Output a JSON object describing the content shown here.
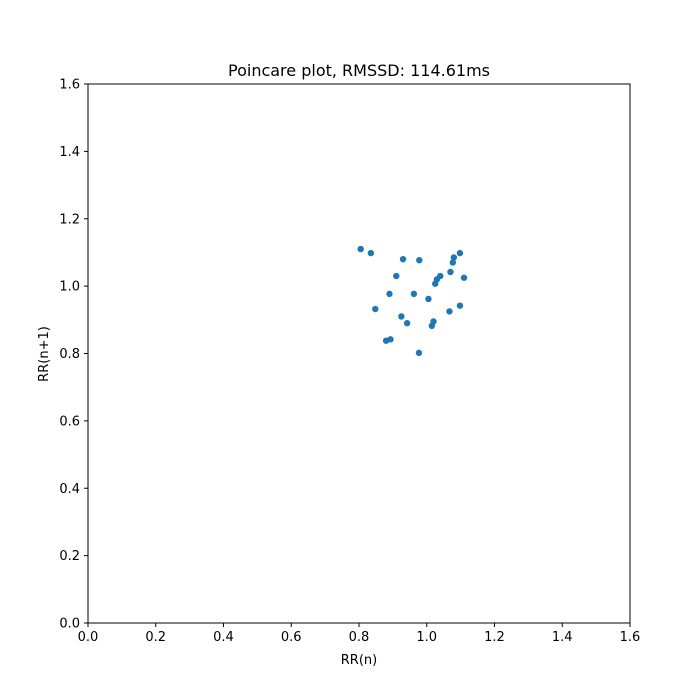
{
  "chart_data": {
    "type": "scatter",
    "title": "Poincare plot, RMSSD: 114.61ms",
    "xlabel": "RR(n)",
    "ylabel": "RR(n+1)",
    "xlim": [
      0.0,
      1.6
    ],
    "ylim": [
      0.0,
      1.6
    ],
    "xticks": [
      "0.0",
      "0.2",
      "0.4",
      "0.6",
      "0.8",
      "1.0",
      "1.2",
      "1.4",
      "1.6"
    ],
    "yticks": [
      "0.0",
      "0.2",
      "0.4",
      "0.6",
      "0.8",
      "1.0",
      "1.2",
      "1.4",
      "1.6"
    ],
    "grid": false,
    "marker_color": "#1f77b4",
    "points": [
      {
        "x": 0.805,
        "y": 1.11
      },
      {
        "x": 0.835,
        "y": 1.098
      },
      {
        "x": 0.93,
        "y": 1.08
      },
      {
        "x": 0.978,
        "y": 1.077
      },
      {
        "x": 1.098,
        "y": 1.098
      },
      {
        "x": 1.08,
        "y": 1.085
      },
      {
        "x": 1.077,
        "y": 1.07
      },
      {
        "x": 0.91,
        "y": 1.03
      },
      {
        "x": 1.07,
        "y": 1.042
      },
      {
        "x": 1.04,
        "y": 1.03
      },
      {
        "x": 1.11,
        "y": 1.025
      },
      {
        "x": 1.03,
        "y": 1.02
      },
      {
        "x": 1.025,
        "y": 1.007
      },
      {
        "x": 0.89,
        "y": 0.977
      },
      {
        "x": 0.962,
        "y": 0.977
      },
      {
        "x": 1.005,
        "y": 0.962
      },
      {
        "x": 1.098,
        "y": 0.942
      },
      {
        "x": 0.848,
        "y": 0.932
      },
      {
        "x": 1.067,
        "y": 0.925
      },
      {
        "x": 0.925,
        "y": 0.91
      },
      {
        "x": 0.942,
        "y": 0.89
      },
      {
        "x": 1.02,
        "y": 0.895
      },
      {
        "x": 1.015,
        "y": 0.882
      },
      {
        "x": 0.88,
        "y": 0.838
      },
      {
        "x": 0.893,
        "y": 0.842
      },
      {
        "x": 0.977,
        "y": 0.802
      }
    ]
  }
}
